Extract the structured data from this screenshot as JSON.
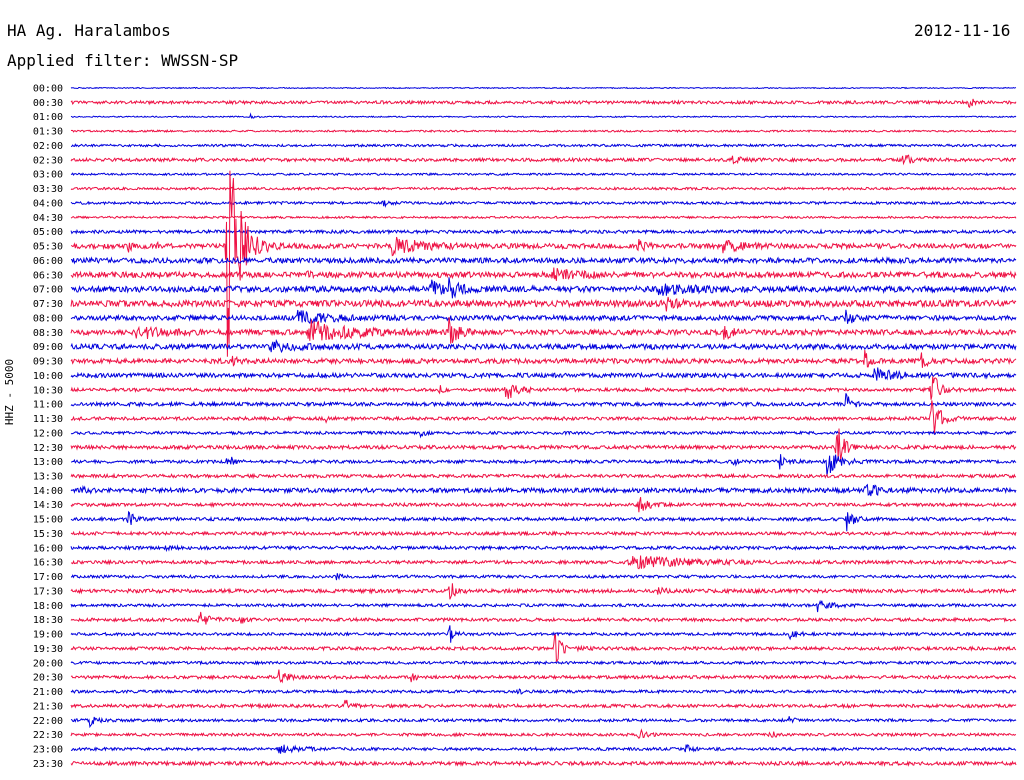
{
  "header": {
    "station": "HA Ag. Haralambos",
    "date": "2012-11-16",
    "filter": "Applied filter: WWSSN-SP"
  },
  "axis": {
    "ylabel": "HHZ - 5000"
  },
  "colors": {
    "trace_a": "#0000dd",
    "trace_b": "#ee1144"
  },
  "chart_data": {
    "type": "line",
    "title": "HA Ag. Haralambos",
    "subtitle": "Applied filter: WWSSN-SP",
    "ylabel": "HHZ - 5000",
    "x_span_minutes": 30,
    "rows": [
      "00:00",
      "00:30",
      "01:00",
      "01:30",
      "02:00",
      "02:30",
      "03:00",
      "03:30",
      "04:00",
      "04:30",
      "05:00",
      "05:30",
      "06:00",
      "06:30",
      "07:00",
      "07:30",
      "08:00",
      "08:30",
      "09:00",
      "09:30",
      "10:00",
      "10:30",
      "11:00",
      "11:30",
      "12:00",
      "12:30",
      "13:00",
      "13:30",
      "14:00",
      "14:30",
      "15:00",
      "15:30",
      "16:00",
      "16:30",
      "17:00",
      "17:30",
      "18:00",
      "18:30",
      "19:00",
      "19:30",
      "20:00",
      "20:30",
      "21:00",
      "21:30",
      "22:00",
      "22:30",
      "23:00",
      "23:30"
    ],
    "noise": [
      0.5,
      1.5,
      0.6,
      0.9,
      1.2,
      1.6,
      1.0,
      1.2,
      1.3,
      1.0,
      1.6,
      2.4,
      2.6,
      2.8,
      3.0,
      3.2,
      2.4,
      2.6,
      2.6,
      2.4,
      2.2,
      1.6,
      1.8,
      1.6,
      1.4,
      1.8,
      1.6,
      1.6,
      2.2,
      1.6,
      1.6,
      1.6,
      1.6,
      1.6,
      1.4,
      1.8,
      1.4,
      1.6,
      1.4,
      1.6,
      1.4,
      1.6,
      1.4,
      1.6,
      1.4,
      1.4,
      1.4,
      1.8
    ],
    "events": [
      {
        "row": "00:30",
        "t": 0.95,
        "amp": 5,
        "dur": 0.006
      },
      {
        "row": "01:00",
        "t": 0.19,
        "amp": 4,
        "dur": 0.004
      },
      {
        "row": "02:30",
        "t": 0.88,
        "amp": 9,
        "dur": 0.006
      },
      {
        "row": "02:30",
        "t": 0.7,
        "amp": 3,
        "dur": 0.01
      },
      {
        "row": "04:00",
        "t": 0.33,
        "amp": 3,
        "dur": 0.006
      },
      {
        "row": "05:30",
        "t": 0.165,
        "amp": 118,
        "dur": 0.012
      },
      {
        "row": "05:30",
        "t": 0.34,
        "amp": 8,
        "dur": 0.03
      },
      {
        "row": "05:30",
        "t": 0.6,
        "amp": 6,
        "dur": 0.006
      },
      {
        "row": "05:30",
        "t": 0.69,
        "amp": 5,
        "dur": 0.02
      },
      {
        "row": "05:30",
        "t": 0.06,
        "amp": 5,
        "dur": 0.004
      },
      {
        "row": "05:30",
        "t": 0.09,
        "amp": 4,
        "dur": 0.004
      },
      {
        "row": "06:30",
        "t": 0.51,
        "amp": 6,
        "dur": 0.02
      },
      {
        "row": "06:30",
        "t": 0.25,
        "amp": 3,
        "dur": 0.004
      },
      {
        "row": "07:00",
        "t": 0.38,
        "amp": 8,
        "dur": 0.01
      },
      {
        "row": "07:00",
        "t": 0.4,
        "amp": 8,
        "dur": 0.01
      },
      {
        "row": "07:00",
        "t": 0.62,
        "amp": 5,
        "dur": 0.03
      },
      {
        "row": "07:30",
        "t": 0.63,
        "amp": 6,
        "dur": 0.01
      },
      {
        "row": "08:00",
        "t": 0.24,
        "amp": 6,
        "dur": 0.03
      },
      {
        "row": "08:00",
        "t": 0.82,
        "amp": 7,
        "dur": 0.008
      },
      {
        "row": "08:30",
        "t": 0.25,
        "amp": 12,
        "dur": 0.04
      },
      {
        "row": "08:30",
        "t": 0.4,
        "amp": 14,
        "dur": 0.008
      },
      {
        "row": "08:30",
        "t": 0.068,
        "amp": 6,
        "dur": 0.004
      },
      {
        "row": "08:30",
        "t": 0.69,
        "amp": 10,
        "dur": 0.008
      },
      {
        "row": "08:30",
        "t": 0.08,
        "amp": 5,
        "dur": 0.02
      },
      {
        "row": "09:00",
        "t": 0.21,
        "amp": 6,
        "dur": 0.02
      },
      {
        "row": "09:30",
        "t": 0.17,
        "amp": 7,
        "dur": 0.006
      },
      {
        "row": "09:30",
        "t": 0.84,
        "amp": 10,
        "dur": 0.004
      },
      {
        "row": "09:30",
        "t": 0.9,
        "amp": 12,
        "dur": 0.004
      },
      {
        "row": "10:00",
        "t": 0.85,
        "amp": 7,
        "dur": 0.02
      },
      {
        "row": "10:30",
        "t": 0.46,
        "amp": 14,
        "dur": 0.01
      },
      {
        "row": "10:30",
        "t": 0.39,
        "amp": 4,
        "dur": 0.004
      },
      {
        "row": "10:30",
        "t": 0.91,
        "amp": 30,
        "dur": 0.006
      },
      {
        "row": "11:00",
        "t": 0.82,
        "amp": 10,
        "dur": 0.006
      },
      {
        "row": "11:30",
        "t": 0.27,
        "amp": 5,
        "dur": 0.004
      },
      {
        "row": "11:30",
        "t": 0.91,
        "amp": 30,
        "dur": 0.008
      },
      {
        "row": "12:00",
        "t": 0.37,
        "amp": 5,
        "dur": 0.004
      },
      {
        "row": "12:30",
        "t": 0.81,
        "amp": 30,
        "dur": 0.006
      },
      {
        "row": "13:00",
        "t": 0.165,
        "amp": 8,
        "dur": 0.006
      },
      {
        "row": "13:00",
        "t": 0.8,
        "amp": 14,
        "dur": 0.012
      },
      {
        "row": "13:00",
        "t": 0.75,
        "amp": 8,
        "dur": 0.006
      },
      {
        "row": "13:00",
        "t": 0.7,
        "amp": 5,
        "dur": 0.004
      },
      {
        "row": "14:00",
        "t": 0.01,
        "amp": 5,
        "dur": 0.006
      },
      {
        "row": "14:00",
        "t": 0.84,
        "amp": 5,
        "dur": 0.02
      },
      {
        "row": "14:30",
        "t": 0.6,
        "amp": 8,
        "dur": 0.01
      },
      {
        "row": "15:00",
        "t": 0.06,
        "amp": 8,
        "dur": 0.006
      },
      {
        "row": "15:00",
        "t": 0.82,
        "amp": 14,
        "dur": 0.006
      },
      {
        "row": "16:00",
        "t": 0.1,
        "amp": 4,
        "dur": 0.004
      },
      {
        "row": "16:30",
        "t": 0.59,
        "amp": 8,
        "dur": 0.05
      },
      {
        "row": "17:00",
        "t": 0.28,
        "amp": 5,
        "dur": 0.004
      },
      {
        "row": "17:30",
        "t": 0.4,
        "amp": 12,
        "dur": 0.006
      },
      {
        "row": "17:30",
        "t": 0.62,
        "amp": 5,
        "dur": 0.006
      },
      {
        "row": "18:00",
        "t": 0.79,
        "amp": 6,
        "dur": 0.012
      },
      {
        "row": "18:30",
        "t": 0.135,
        "amp": 8,
        "dur": 0.01
      },
      {
        "row": "18:30",
        "t": 0.18,
        "amp": 5,
        "dur": 0.004
      },
      {
        "row": "19:00",
        "t": 0.4,
        "amp": 10,
        "dur": 0.006
      },
      {
        "row": "19:00",
        "t": 0.76,
        "amp": 8,
        "dur": 0.006
      },
      {
        "row": "19:30",
        "t": 0.51,
        "amp": 20,
        "dur": 0.008
      },
      {
        "row": "20:30",
        "t": 0.22,
        "amp": 8,
        "dur": 0.006
      },
      {
        "row": "20:30",
        "t": 0.36,
        "amp": 5,
        "dur": 0.004
      },
      {
        "row": "21:00",
        "t": 0.47,
        "amp": 5,
        "dur": 0.004
      },
      {
        "row": "21:30",
        "t": 0.29,
        "amp": 6,
        "dur": 0.006
      },
      {
        "row": "22:00",
        "t": 0.02,
        "amp": 6,
        "dur": 0.006
      },
      {
        "row": "22:00",
        "t": 0.76,
        "amp": 5,
        "dur": 0.004
      },
      {
        "row": "22:30",
        "t": 0.6,
        "amp": 6,
        "dur": 0.006
      },
      {
        "row": "22:30",
        "t": 0.74,
        "amp": 6,
        "dur": 0.004
      },
      {
        "row": "23:00",
        "t": 0.65,
        "amp": 5,
        "dur": 0.006
      },
      {
        "row": "23:00",
        "t": 0.22,
        "amp": 4,
        "dur": 0.02
      }
    ]
  }
}
